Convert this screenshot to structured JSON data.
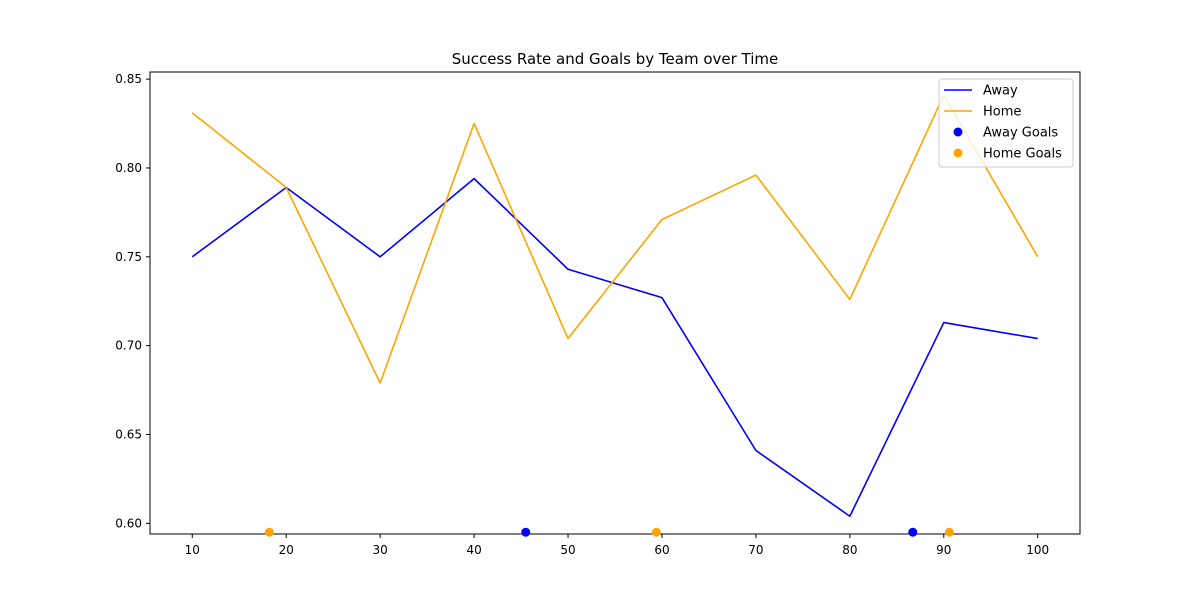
{
  "chart_data": {
    "type": "line",
    "title": "Success Rate and Goals by Team over Time",
    "xlabel": "",
    "ylabel": "",
    "x": [
      10,
      20,
      30,
      40,
      50,
      60,
      70,
      80,
      90,
      100
    ],
    "xlim": [
      5.5,
      104.5
    ],
    "ylim": [
      0.594,
      0.854
    ],
    "x_ticks": [
      "10",
      "20",
      "30",
      "40",
      "50",
      "60",
      "70",
      "80",
      "90",
      "100"
    ],
    "y_ticks": [
      "0.60",
      "0.65",
      "0.70",
      "0.75",
      "0.80",
      "0.85"
    ],
    "y_tick_values": [
      0.6,
      0.65,
      0.7,
      0.75,
      0.8,
      0.85
    ],
    "grid": false,
    "legend_position": "top-right",
    "series": [
      {
        "name": "Away",
        "kind": "line",
        "color": "#0000ff",
        "values": [
          0.75,
          0.789,
          0.75,
          0.794,
          0.743,
          0.727,
          0.641,
          0.604,
          0.713,
          0.704
        ]
      },
      {
        "name": "Home",
        "kind": "line",
        "color": "#ffa500",
        "values": [
          0.831,
          0.789,
          0.679,
          0.825,
          0.704,
          0.771,
          0.796,
          0.726,
          0.841,
          0.75
        ]
      },
      {
        "name": "Away Goals",
        "kind": "scatter",
        "color": "#0000ff",
        "points": [
          [
            45.5,
            0.595
          ],
          [
            86.7,
            0.595
          ]
        ]
      },
      {
        "name": "Home Goals",
        "kind": "scatter",
        "color": "#ffa500",
        "points": [
          [
            18.2,
            0.595
          ],
          [
            59.4,
            0.595
          ],
          [
            90.6,
            0.595
          ]
        ]
      }
    ]
  }
}
